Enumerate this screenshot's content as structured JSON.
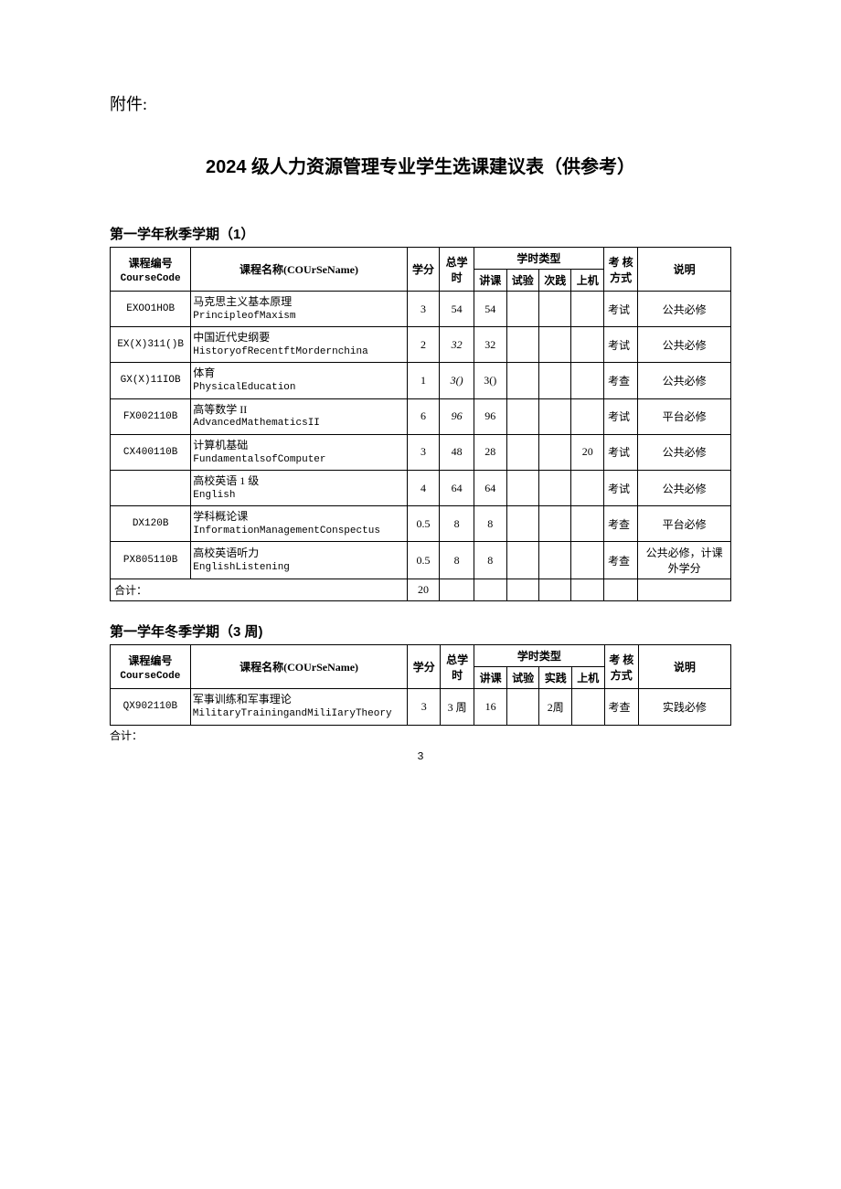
{
  "attachment_label": "附件:",
  "title": "2024 级人力资源管理专业学生选课建议表（供参考）",
  "page_number": "3",
  "table1": {
    "section_title": "第一学年秋季学期（1）",
    "headers": {
      "code": "课程编号",
      "code_en": "CourseCode",
      "name": "课程名称(COUrSeName)",
      "credit": "学分",
      "total_hours": "总学时",
      "hour_type": "学时类型",
      "lecture": "讲课",
      "experiment": "试验",
      "practice": "次践",
      "machine": "上机",
      "assessment": "考 核方式",
      "note": "说明"
    },
    "rows": [
      {
        "code": "EXOO1HOB",
        "name_cn": "马克思主义基本原理",
        "name_en": "PrincipleofMaxism",
        "credit": "3",
        "total": "54",
        "lecture": "54",
        "experiment": "",
        "practice": "",
        "machine": "",
        "assess": "考试",
        "note": "公共必修",
        "total_italic": false
      },
      {
        "code": "EX(X)311()B",
        "name_cn": "中国近代史纲要",
        "name_en": "HistoryofRecentftMordernchina",
        "credit": "2",
        "total": "32",
        "lecture": "32",
        "experiment": "",
        "practice": "",
        "machine": "",
        "assess": "考试",
        "note": "公共必修",
        "total_italic": true
      },
      {
        "code": "GX(X)11IOB",
        "name_cn": "体育",
        "name_en": "PhysicalEducation",
        "credit": "1",
        "total": "3()",
        "lecture": "3()",
        "experiment": "",
        "practice": "",
        "machine": "",
        "assess": "考查",
        "note": "公共必修",
        "total_italic": true
      },
      {
        "code": "FX002110B",
        "name_cn": "高等数学 II",
        "name_en": "AdvancedMathematicsII",
        "credit": "6",
        "total": "96",
        "lecture": "96",
        "experiment": "",
        "practice": "",
        "machine": "",
        "assess": "考试",
        "note": "平台必修",
        "total_italic": true
      },
      {
        "code": "CX400110B",
        "name_cn": "计算机基础",
        "name_en": "FundamentalsofComputer",
        "credit": "3",
        "total": "48",
        "lecture": "28",
        "experiment": "",
        "practice": "",
        "machine": "20",
        "assess": "考试",
        "note": "公共必修",
        "total_italic": false
      },
      {
        "code": "",
        "name_cn": "高校英语 1 级",
        "name_en": "English",
        "credit": "4",
        "total": "64",
        "lecture": "64",
        "experiment": "",
        "practice": "",
        "machine": "",
        "assess": "考试",
        "note": "公共必修",
        "total_italic": false
      },
      {
        "code": "DX120B",
        "name_cn": "学科概论课",
        "name_en": "InformationManagementConspectus",
        "credit": "0.5",
        "total": "8",
        "lecture": "8",
        "experiment": "",
        "practice": "",
        "machine": "",
        "assess": "考查",
        "note": "平台必修",
        "total_italic": false
      },
      {
        "code": "PX805110B",
        "name_cn": "高校英语听力",
        "name_en": "EnglishListening",
        "credit": "0.5",
        "total": "8",
        "lecture": "8",
        "experiment": "",
        "practice": "",
        "machine": "",
        "assess": "考查",
        "note": "公共必修，计课外学分",
        "total_italic": false
      }
    ],
    "sum_label": "合计：",
    "sum_credit": "20"
  },
  "table2": {
    "section_title": "第一学年冬季学期（3 周)",
    "headers": {
      "code": "课程编号",
      "code_en": "CourseCode",
      "name": "课程名称(COUrSeName)",
      "credit": "学分",
      "total_hours": "总学时",
      "hour_type": "学时类型",
      "lecture": "讲课",
      "experiment": "试验",
      "practice": "实践",
      "machine": "上机",
      "assessment": "考 核方式",
      "note": "说明"
    },
    "rows": [
      {
        "code": "QX902110B",
        "name_cn": "军事训练和军事理论",
        "name_en": "MilitaryTrainingandMiliIaryTheory",
        "credit": "3",
        "total": "3 周",
        "lecture": "16",
        "experiment": "",
        "practice": "2周",
        "machine": "",
        "assess": "考查",
        "note": "实践必修"
      }
    ],
    "sum_label": "合计："
  }
}
